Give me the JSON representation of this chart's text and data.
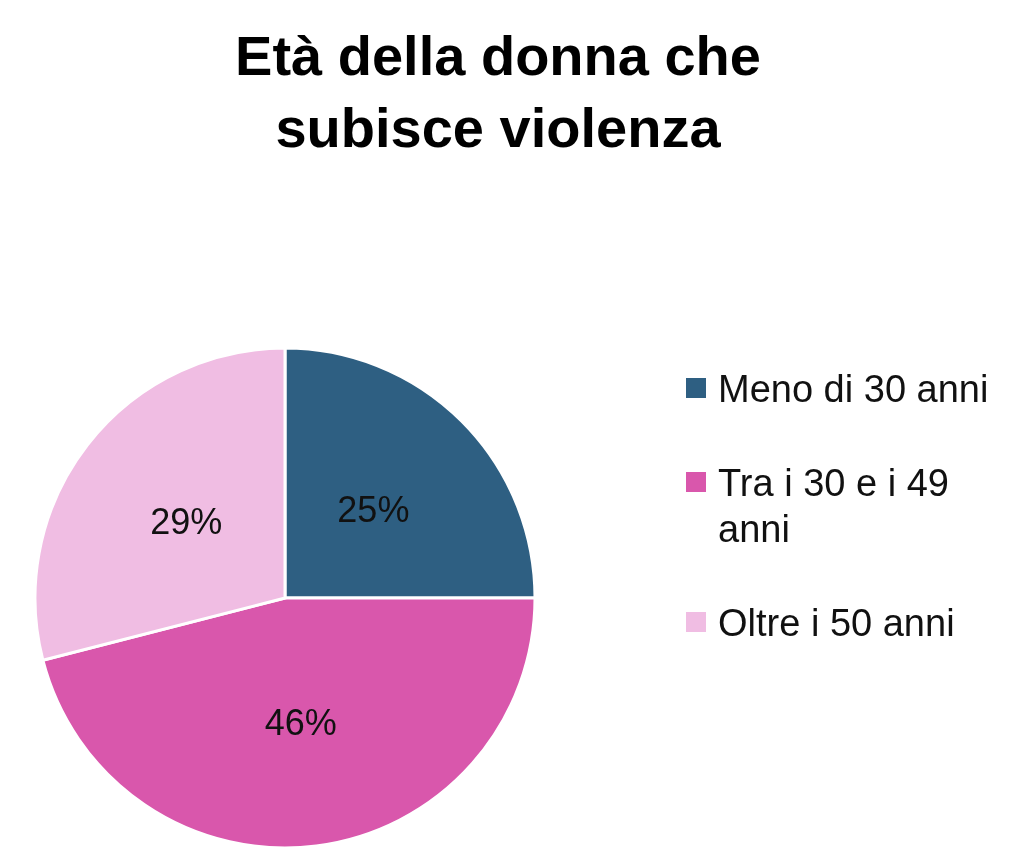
{
  "chart_data": {
    "type": "pie",
    "title": "Età della donna che subisce violenza",
    "categories": [
      "Meno di 30 anni",
      "Tra i 30 e i 49 anni",
      "Oltre i 50 anni"
    ],
    "values": [
      25,
      46,
      29
    ],
    "colors": [
      "#2e5f82",
      "#d957ac",
      "#f0bde3"
    ],
    "value_labels": [
      "25%",
      "46%",
      "29%"
    ],
    "legend": "right"
  }
}
